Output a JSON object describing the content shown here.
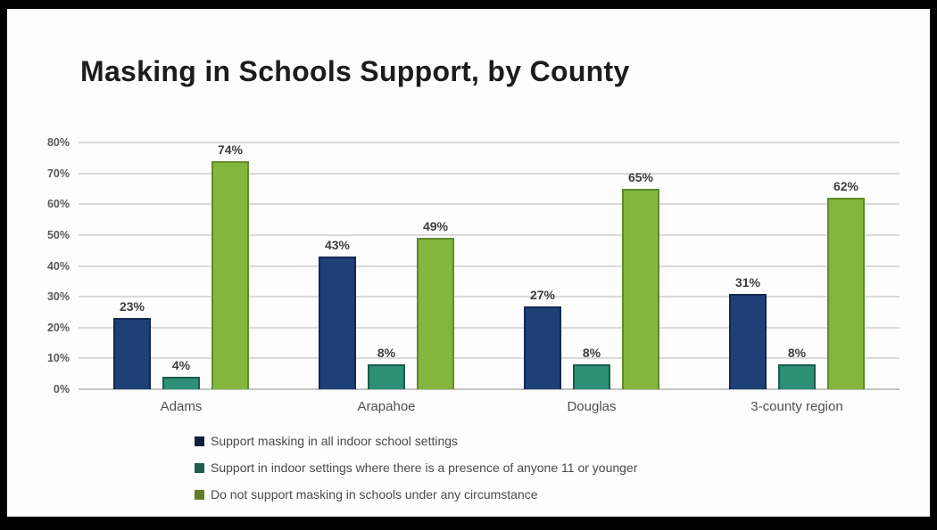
{
  "title": "Masking in Schools Support, by County",
  "chart_data": {
    "type": "bar",
    "title": "Masking in Schools Support, by County",
    "categories": [
      "Adams",
      "Arapahoe",
      "Douglas",
      "3-county region"
    ],
    "series": [
      {
        "name": "Support masking in all indoor school settings",
        "values": [
          23,
          43,
          27,
          31
        ],
        "fill": "#1e4077",
        "border": "#11294f",
        "swatch": "#101f3d"
      },
      {
        "name": "Support in indoor settings where there is a presence of anyone 11 or younger",
        "values": [
          4,
          8,
          8,
          8
        ],
        "fill": "#2e8f77",
        "border": "#1b5c4c",
        "swatch": "#1e5c4b"
      },
      {
        "name": "Do not support masking in schools under any circumstance",
        "values": [
          74,
          49,
          65,
          62
        ],
        "fill": "#84b63e",
        "border": "#5f8b29",
        "swatch": "#647c26"
      }
    ],
    "data_label_suffix": "%",
    "xlabel": "",
    "ylabel": "",
    "ylim": [
      0,
      80
    ],
    "ytick_step": 10,
    "ytick_labels": [
      "0%",
      "10%",
      "20%",
      "30%",
      "40%",
      "50%",
      "60%",
      "70%",
      "80%"
    ],
    "grid": true,
    "legend_position": "bottom-left"
  }
}
